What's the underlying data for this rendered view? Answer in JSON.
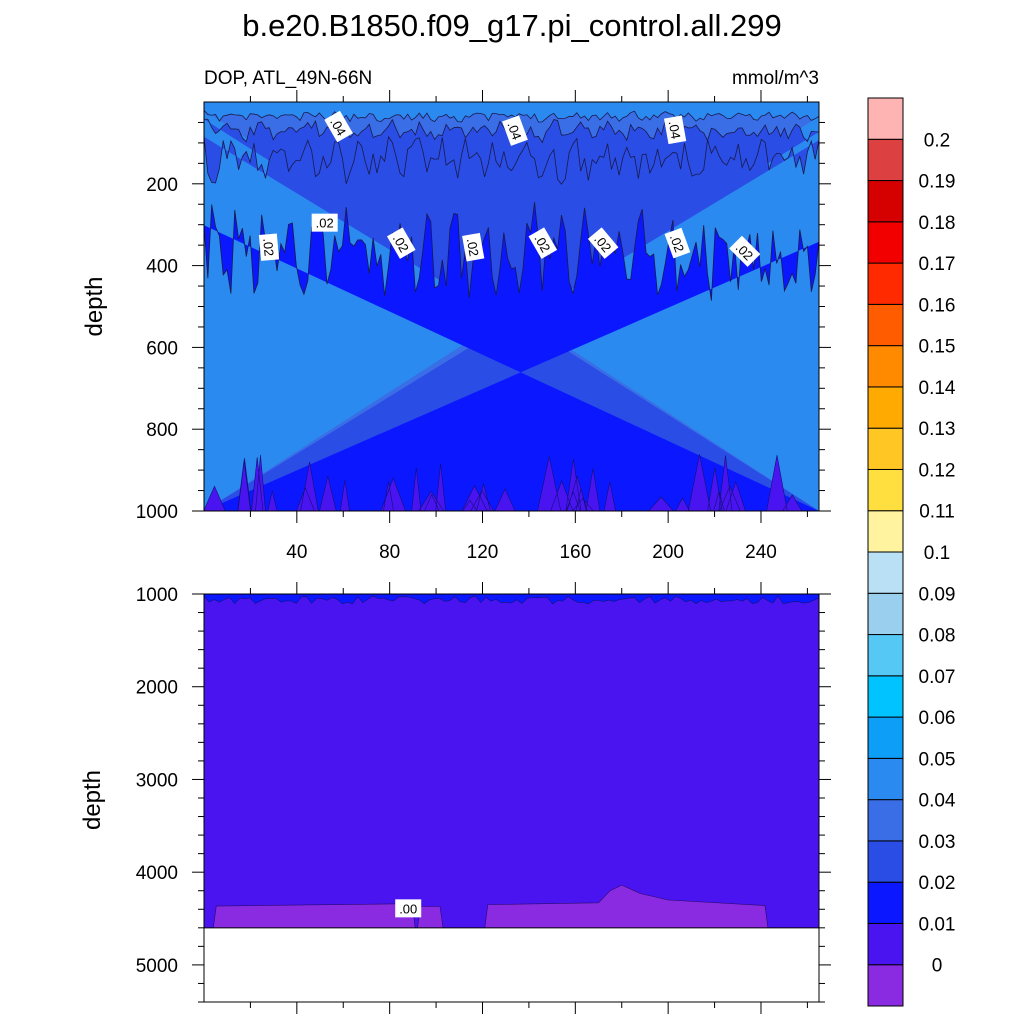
{
  "title": "b.e20.B1850.f09_g17.pi_control.all.299",
  "left_subtitle": "DOP, ATL_49N-66N",
  "right_subtitle": "mmol/m^3",
  "colors": {
    "bands": [
      "#8a2be2",
      "#4a14f0",
      "#0b18ff",
      "#2a4de6",
      "#3a6ee6",
      "#2a8af0",
      "#0d9ef8",
      "#00c3ff",
      "#55c8f5",
      "#9ad0ee",
      "#b9e0f5",
      "#fff3a0",
      "#ffdf40",
      "#ffc624",
      "#ffaa00",
      "#ff8a00",
      "#ff5c00",
      "#ff2a00",
      "#f20000",
      "#d50000",
      "#dd4040",
      "#ffb4b4"
    ]
  },
  "chart_data": [
    {
      "type": "contour",
      "panel": "upper",
      "xlabel": "",
      "ylabel": "depth",
      "xlim": [
        0,
        265
      ],
      "ylim": [
        1000,
        0
      ],
      "x_ticks": [
        "40",
        "80",
        "120",
        "160",
        "200",
        "240"
      ],
      "x_tick_values": [
        40,
        80,
        120,
        160,
        200,
        240
      ],
      "y_ticks": [
        "200",
        "400",
        "600",
        "800",
        "1000"
      ],
      "y_tick_values": [
        200,
        400,
        600,
        800,
        1000
      ],
      "contour_labels": [
        {
          "text": ".04",
          "x": 58,
          "depth": 60
        },
        {
          "text": ".04",
          "x": 134,
          "depth": 70
        },
        {
          "text": ".04",
          "x": 203,
          "depth": 68
        },
        {
          "text": ".02",
          "x": 52,
          "depth": 295
        },
        {
          "text": ".02",
          "x": 28,
          "depth": 355
        },
        {
          "text": ".02",
          "x": 85,
          "depth": 345
        },
        {
          "text": ".02",
          "x": 116,
          "depth": 355
        },
        {
          "text": ".02",
          "x": 146,
          "depth": 345
        },
        {
          "text": ".02",
          "x": 172,
          "depth": 345
        },
        {
          "text": ".02",
          "x": 204,
          "depth": 345
        },
        {
          "text": ".02",
          "x": 233,
          "depth": 365
        }
      ]
    },
    {
      "type": "contour",
      "panel": "lower",
      "xlabel": "",
      "ylabel": "depth",
      "xlim": [
        0,
        265
      ],
      "ylim": [
        5400,
        1000
      ],
      "y_ticks": [
        "1000",
        "2000",
        "3000",
        "4000",
        "5000"
      ],
      "y_tick_values": [
        1000,
        2000,
        3000,
        4000,
        5000
      ],
      "bottom_depth": 4600,
      "contour_labels": [
        {
          "text": ".00",
          "x": 88,
          "depth": 4390
        }
      ]
    },
    {
      "type": "colorbar",
      "levels": [
        "0",
        "0.01",
        "0.02",
        "0.03",
        "0.04",
        "0.05",
        "0.06",
        "0.07",
        "0.08",
        "0.09",
        "0.1",
        "0.11",
        "0.12",
        "0.13",
        "0.14",
        "0.15",
        "0.16",
        "0.17",
        "0.18",
        "0.19",
        "0.2"
      ],
      "level_values": [
        0,
        0.01,
        0.02,
        0.03,
        0.04,
        0.05,
        0.06,
        0.07,
        0.08,
        0.09,
        0.1,
        0.11,
        0.12,
        0.13,
        0.14,
        0.15,
        0.16,
        0.17,
        0.18,
        0.19,
        0.2
      ]
    }
  ]
}
